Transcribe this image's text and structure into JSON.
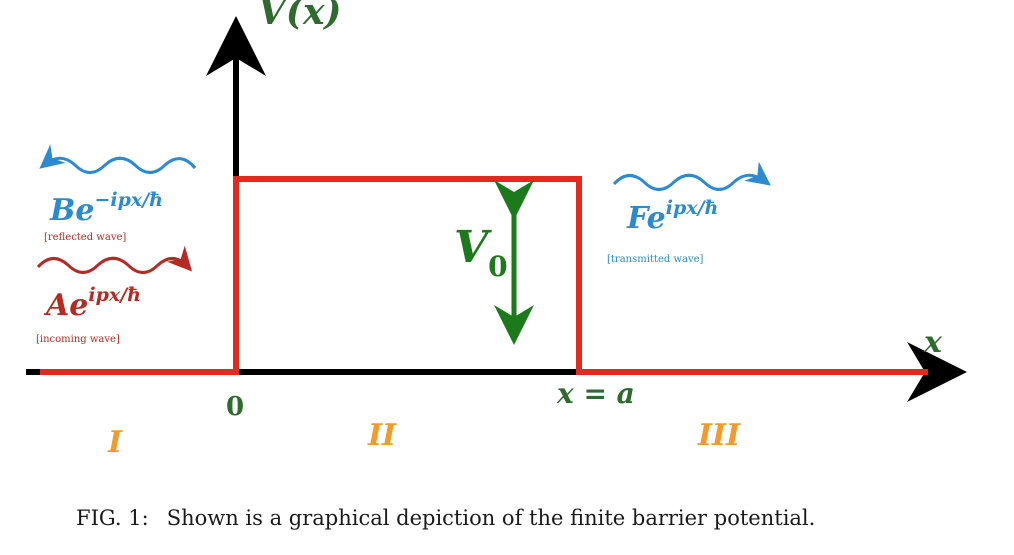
{
  "axes": {
    "y_label": "V(x)",
    "x_label": "x",
    "origin_label": "0",
    "a_label": "x = a"
  },
  "barrier": {
    "height_label": "V",
    "height_subscript": "0"
  },
  "waves": {
    "reflected": {
      "coef": "Be",
      "exp": "−ipx/ħ",
      "note": "[reflected wave]"
    },
    "incoming": {
      "coef": "Ae",
      "exp": "ipx/ħ",
      "note": "[incoming wave]"
    },
    "transmitted": {
      "coef": "Fe",
      "exp": "ipx/ħ",
      "note": "[transmitted wave]"
    }
  },
  "regions": {
    "left": "I",
    "middle": "II",
    "right": "III"
  },
  "caption": {
    "label": "FIG. 1:",
    "text": "Shown is a graphical depiction of the finite barrier potential."
  },
  "colors": {
    "barrier": "#e32a1c",
    "axis": "#000000",
    "arrow_v0": "#1c7a1c",
    "reflected": "#2c8ad0",
    "incoming": "#b52a22",
    "transmitted": "#2c8ad0",
    "region": "#f39b2a",
    "axis_label": "#2f6b2f"
  }
}
